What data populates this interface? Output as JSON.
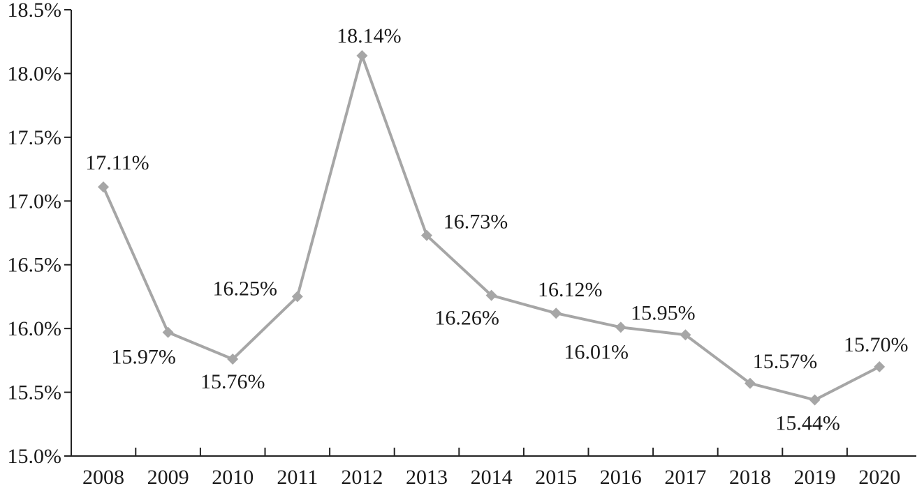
{
  "chart_data": {
    "type": "line",
    "title": "",
    "xlabel": "",
    "ylabel": "",
    "categories": [
      "2008",
      "2009",
      "2010",
      "2011",
      "2012",
      "2013",
      "2014",
      "2015",
      "2016",
      "2017",
      "2018",
      "2019",
      "2020"
    ],
    "series": [
      {
        "values": [
          17.11,
          15.97,
          15.76,
          16.25,
          18.14,
          16.73,
          16.26,
          16.12,
          16.01,
          15.95,
          15.57,
          15.44,
          15.7
        ],
        "labels": [
          "17.11%",
          "15.97%",
          "15.76%",
          "16.25%",
          "18.14%",
          "16.73%",
          "16.26%",
          "16.12%",
          "16.01%",
          "15.95%",
          "15.57%",
          "15.44%",
          "15.70%"
        ],
        "color": "#a6a6a6",
        "marker": "diamond"
      }
    ],
    "ylim": [
      15.0,
      18.5
    ],
    "yticks": [
      15.0,
      15.5,
      16.0,
      16.5,
      17.0,
      17.5,
      18.0,
      18.5
    ],
    "ytick_labels": [
      "15.0%",
      "15.5%",
      "16.0%",
      "16.5%",
      "17.0%",
      "17.5%",
      "18.0%",
      "18.5%"
    ],
    "grid": false,
    "legend": "none"
  }
}
